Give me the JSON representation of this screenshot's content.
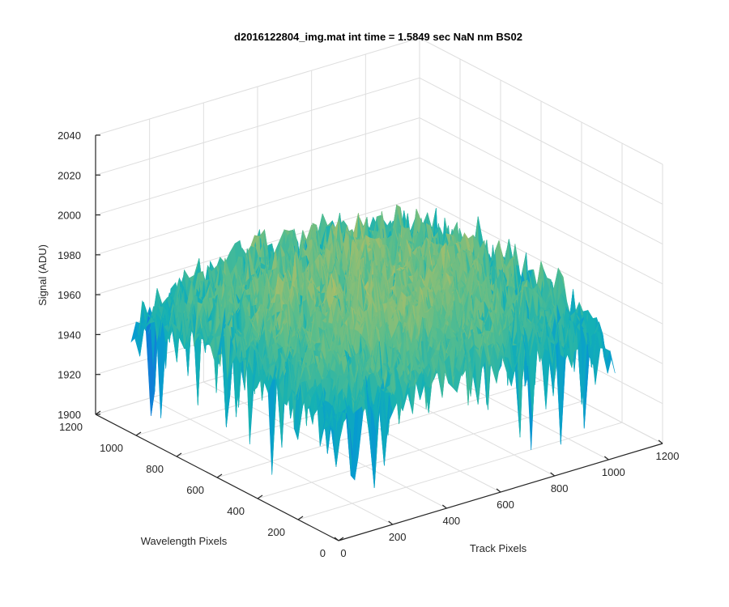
{
  "chart_data": {
    "type": "surface",
    "title": "d2016122804_img.mat int time = 1.5849 sec  NaN nm BS02",
    "xlabel": "Track Pixels",
    "ylabel": "Wavelength Pixels",
    "zlabel": "Signal (ADU)",
    "xlim": [
      0,
      1200
    ],
    "ylim": [
      0,
      1200
    ],
    "zlim": [
      1900,
      2040
    ],
    "x_ticks": [
      "0",
      "200",
      "400",
      "600",
      "800",
      "1000",
      "1200"
    ],
    "y_ticks": [
      "0",
      "200",
      "400",
      "600",
      "800",
      "1000",
      "1200"
    ],
    "z_ticks": [
      "1900",
      "1920",
      "1940",
      "1960",
      "1980",
      "2000",
      "2020",
      "2040"
    ],
    "data_extent": {
      "x": [
        0,
        1024
      ],
      "y": [
        0,
        1024
      ]
    },
    "signal_range": [
      1905,
      2030
    ],
    "colormap": "parula",
    "grid": true,
    "legend": "none"
  }
}
